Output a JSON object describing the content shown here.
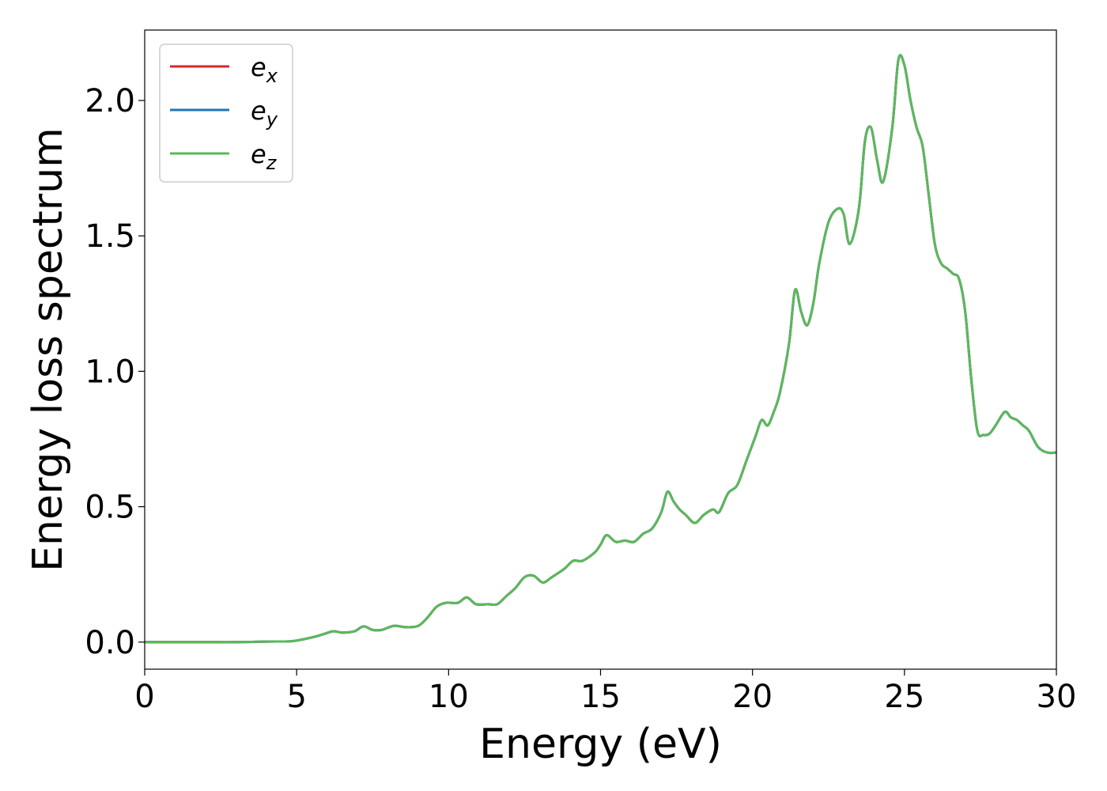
{
  "chart_data": {
    "type": "line",
    "title": "",
    "xlabel": "Energy (eV)",
    "ylabel": "Energy loss spectrum",
    "xlim": [
      0,
      30
    ],
    "ylim": [
      -0.1,
      2.26
    ],
    "xticks": [
      0,
      5,
      10,
      15,
      20,
      25,
      30
    ],
    "yticks": [
      0.0,
      0.5,
      1.0,
      1.5,
      2.0
    ],
    "xtick_labels": [
      "0",
      "5",
      "10",
      "15",
      "20",
      "25",
      "30"
    ],
    "ytick_labels": [
      "0.0",
      "0.5",
      "1.0",
      "1.5",
      "2.0"
    ],
    "grid": false,
    "legend_position": "top-left",
    "series": [
      {
        "name": "e_x",
        "base": "e",
        "sub": "x",
        "color": "#d62728",
        "x": [
          0,
          1,
          2,
          3,
          4,
          4.8,
          5.2,
          5.6,
          5.9,
          6.2,
          6.5,
          6.9,
          7.2,
          7.5,
          7.8,
          8.2,
          8.6,
          9.0,
          9.3,
          9.6,
          9.9,
          10.3,
          10.6,
          10.9,
          11.3,
          11.6,
          11.9,
          12.2,
          12.5,
          12.8,
          13.1,
          13.4,
          13.8,
          14.1,
          14.4,
          14.8,
          15.0,
          15.2,
          15.5,
          15.8,
          16.1,
          16.4,
          16.7,
          17.0,
          17.2,
          17.4,
          17.6,
          17.8,
          18.1,
          18.4,
          18.7,
          18.9,
          19.2,
          19.5,
          19.8,
          20.1,
          20.3,
          20.5,
          20.7,
          20.9,
          21.2,
          21.4,
          21.6,
          21.8,
          22.0,
          22.2,
          22.5,
          22.8,
          23.0,
          23.2,
          23.5,
          23.7,
          23.9,
          24.1,
          24.3,
          24.6,
          24.8,
          25.0,
          25.2,
          25.4,
          25.6,
          25.8,
          26.0,
          26.2,
          26.4,
          26.6,
          26.8,
          27.0,
          27.2,
          27.4,
          27.6,
          27.8,
          28.0,
          28.3,
          28.5,
          28.7,
          28.9,
          29.1,
          29.4,
          29.7,
          30.0
        ],
        "values": [
          0,
          0,
          0,
          0,
          0.002,
          0.003,
          0.01,
          0.02,
          0.03,
          0.04,
          0.035,
          0.04,
          0.058,
          0.045,
          0.045,
          0.06,
          0.055,
          0.06,
          0.09,
          0.13,
          0.145,
          0.145,
          0.165,
          0.14,
          0.14,
          0.14,
          0.17,
          0.2,
          0.24,
          0.245,
          0.22,
          0.24,
          0.27,
          0.3,
          0.3,
          0.33,
          0.36,
          0.395,
          0.37,
          0.375,
          0.37,
          0.4,
          0.42,
          0.48,
          0.555,
          0.52,
          0.49,
          0.47,
          0.44,
          0.47,
          0.49,
          0.48,
          0.55,
          0.58,
          0.67,
          0.76,
          0.82,
          0.8,
          0.85,
          0.92,
          1.1,
          1.3,
          1.22,
          1.17,
          1.25,
          1.4,
          1.55,
          1.6,
          1.58,
          1.47,
          1.6,
          1.85,
          1.9,
          1.78,
          1.7,
          1.9,
          2.15,
          2.13,
          2.0,
          1.9,
          1.83,
          1.65,
          1.47,
          1.4,
          1.38,
          1.36,
          1.34,
          1.22,
          0.97,
          0.78,
          0.765,
          0.77,
          0.8,
          0.85,
          0.83,
          0.82,
          0.8,
          0.78,
          0.72,
          0.7,
          0.7
        ]
      },
      {
        "name": "e_y",
        "base": "e",
        "sub": "y",
        "color": "#1f77b4",
        "x": [
          0,
          1,
          2,
          3,
          4,
          4.8,
          5.2,
          5.6,
          5.9,
          6.2,
          6.5,
          6.9,
          7.2,
          7.5,
          7.8,
          8.2,
          8.6,
          9.0,
          9.3,
          9.6,
          9.9,
          10.3,
          10.6,
          10.9,
          11.3,
          11.6,
          11.9,
          12.2,
          12.5,
          12.8,
          13.1,
          13.4,
          13.8,
          14.1,
          14.4,
          14.8,
          15.0,
          15.2,
          15.5,
          15.8,
          16.1,
          16.4,
          16.7,
          17.0,
          17.2,
          17.4,
          17.6,
          17.8,
          18.1,
          18.4,
          18.7,
          18.9,
          19.2,
          19.5,
          19.8,
          20.1,
          20.3,
          20.5,
          20.7,
          20.9,
          21.2,
          21.4,
          21.6,
          21.8,
          22.0,
          22.2,
          22.5,
          22.8,
          23.0,
          23.2,
          23.5,
          23.7,
          23.9,
          24.1,
          24.3,
          24.6,
          24.8,
          25.0,
          25.2,
          25.4,
          25.6,
          25.8,
          26.0,
          26.2,
          26.4,
          26.6,
          26.8,
          27.0,
          27.2,
          27.4,
          27.6,
          27.8,
          28.0,
          28.3,
          28.5,
          28.7,
          28.9,
          29.1,
          29.4,
          29.7,
          30.0
        ],
        "values": [
          0,
          0,
          0,
          0,
          0.002,
          0.003,
          0.01,
          0.02,
          0.03,
          0.04,
          0.035,
          0.04,
          0.058,
          0.045,
          0.045,
          0.06,
          0.055,
          0.06,
          0.09,
          0.13,
          0.145,
          0.145,
          0.165,
          0.14,
          0.14,
          0.14,
          0.17,
          0.2,
          0.24,
          0.245,
          0.22,
          0.24,
          0.27,
          0.3,
          0.3,
          0.33,
          0.36,
          0.395,
          0.37,
          0.375,
          0.37,
          0.4,
          0.42,
          0.48,
          0.555,
          0.52,
          0.49,
          0.47,
          0.44,
          0.47,
          0.49,
          0.48,
          0.55,
          0.58,
          0.67,
          0.76,
          0.82,
          0.8,
          0.85,
          0.92,
          1.1,
          1.3,
          1.22,
          1.17,
          1.25,
          1.4,
          1.55,
          1.6,
          1.58,
          1.47,
          1.6,
          1.85,
          1.9,
          1.78,
          1.7,
          1.9,
          2.15,
          2.13,
          2.0,
          1.9,
          1.83,
          1.65,
          1.47,
          1.4,
          1.38,
          1.36,
          1.34,
          1.22,
          0.97,
          0.78,
          0.765,
          0.77,
          0.8,
          0.85,
          0.83,
          0.82,
          0.8,
          0.78,
          0.72,
          0.7,
          0.7
        ]
      },
      {
        "name": "e_z",
        "base": "e",
        "sub": "z",
        "color": "#5cb85c",
        "x": [
          0,
          1,
          2,
          3,
          4,
          4.8,
          5.2,
          5.6,
          5.9,
          6.2,
          6.5,
          6.9,
          7.2,
          7.5,
          7.8,
          8.2,
          8.6,
          9.0,
          9.3,
          9.6,
          9.9,
          10.3,
          10.6,
          10.9,
          11.3,
          11.6,
          11.9,
          12.2,
          12.5,
          12.8,
          13.1,
          13.4,
          13.8,
          14.1,
          14.4,
          14.8,
          15.0,
          15.2,
          15.5,
          15.8,
          16.1,
          16.4,
          16.7,
          17.0,
          17.2,
          17.4,
          17.6,
          17.8,
          18.1,
          18.4,
          18.7,
          18.9,
          19.2,
          19.5,
          19.8,
          20.1,
          20.3,
          20.5,
          20.7,
          20.9,
          21.2,
          21.4,
          21.6,
          21.8,
          22.0,
          22.2,
          22.5,
          22.8,
          23.0,
          23.2,
          23.5,
          23.7,
          23.9,
          24.1,
          24.3,
          24.6,
          24.8,
          25.0,
          25.2,
          25.4,
          25.6,
          25.8,
          26.0,
          26.2,
          26.4,
          26.6,
          26.8,
          27.0,
          27.2,
          27.4,
          27.6,
          27.8,
          28.0,
          28.3,
          28.5,
          28.7,
          28.9,
          29.1,
          29.4,
          29.7,
          30.0
        ],
        "values": [
          0,
          0,
          0,
          0,
          0.002,
          0.003,
          0.01,
          0.02,
          0.03,
          0.04,
          0.035,
          0.04,
          0.058,
          0.045,
          0.045,
          0.06,
          0.055,
          0.06,
          0.09,
          0.13,
          0.145,
          0.145,
          0.165,
          0.14,
          0.14,
          0.14,
          0.17,
          0.2,
          0.24,
          0.245,
          0.22,
          0.24,
          0.27,
          0.3,
          0.3,
          0.33,
          0.36,
          0.395,
          0.37,
          0.375,
          0.37,
          0.4,
          0.42,
          0.48,
          0.555,
          0.52,
          0.49,
          0.47,
          0.44,
          0.47,
          0.49,
          0.48,
          0.55,
          0.58,
          0.67,
          0.76,
          0.82,
          0.8,
          0.85,
          0.92,
          1.1,
          1.3,
          1.22,
          1.17,
          1.25,
          1.4,
          1.55,
          1.6,
          1.58,
          1.47,
          1.6,
          1.85,
          1.9,
          1.78,
          1.7,
          1.9,
          2.15,
          2.13,
          2.0,
          1.9,
          1.83,
          1.65,
          1.47,
          1.4,
          1.38,
          1.36,
          1.34,
          1.22,
          0.97,
          0.78,
          0.765,
          0.77,
          0.8,
          0.85,
          0.83,
          0.82,
          0.8,
          0.78,
          0.72,
          0.7,
          0.7
        ]
      }
    ]
  }
}
